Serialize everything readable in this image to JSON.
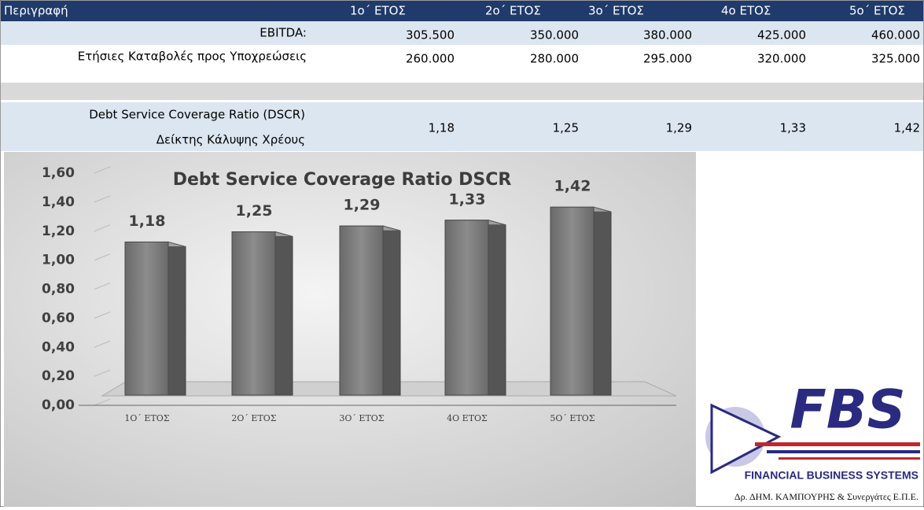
{
  "table": {
    "header": [
      "Περιγραφή",
      "1ο΄ ΕΤΟΣ",
      "2ο΄ ΕΤΟΣ",
      "3ο΄ ΕΤΟΣ",
      "4ο ΕΤΟΣ",
      "5ο΄ ΕΤΟΣ"
    ],
    "rows": [
      [
        "EBITDA:",
        "305.500",
        "350.000",
        "380.000",
        "425.000",
        "460.000"
      ],
      [
        "Ετήσιες Καταβολές προς Υποχρεώσεις",
        "260.000",
        "280.000",
        "295.000",
        "320.000",
        "325.000"
      ]
    ],
    "dscr": {
      "labels": [
        "Debt Service Coverage Ratio (DSCR)",
        "Δείκτης Κάλυψης Χρέους"
      ],
      "values": [
        "1,18",
        "1,25",
        "1,29",
        "1,33",
        "1,42"
      ]
    }
  },
  "chart_data": {
    "type": "bar",
    "title": "Debt Service Coverage Ratio DSCR",
    "categories": [
      "1Ο΄ ΕΤΟΣ",
      "2Ο΄ ΕΤΟΣ",
      "3Ο΄ ΕΤΟΣ",
      "4Ο ΕΤΟΣ",
      "5Ο΄ ΕΤΟΣ"
    ],
    "values": [
      1.18,
      1.25,
      1.29,
      1.33,
      1.42
    ],
    "value_labels": [
      "1,18",
      "1,25",
      "1,29",
      "1,33",
      "1,42"
    ],
    "color": "#7a7a7a",
    "ylim": [
      0,
      1.6
    ],
    "yticks": [
      {
        "value": 0,
        "label": "0,00"
      },
      {
        "value": 0.2,
        "label": "0,20"
      },
      {
        "value": 0.4,
        "label": "0,40"
      },
      {
        "value": 0.6,
        "label": "0,60"
      },
      {
        "value": 0.8,
        "label": "0,80"
      },
      {
        "value": 1,
        "label": "1,00"
      },
      {
        "value": 1.2,
        "label": "1,20"
      },
      {
        "value": 1.4,
        "label": "1,40"
      },
      {
        "value": 1.6,
        "label": "1,60"
      }
    ],
    "grid": true
  },
  "logo": {
    "mark": "FBS",
    "name": "FINANCIAL BUSINESS SYSTEMS",
    "company": "Δρ. ΔΗΜ. ΚΑΜΠΟΥΡΗΣ & Συνεργάτες Ε.Π.Ε."
  }
}
